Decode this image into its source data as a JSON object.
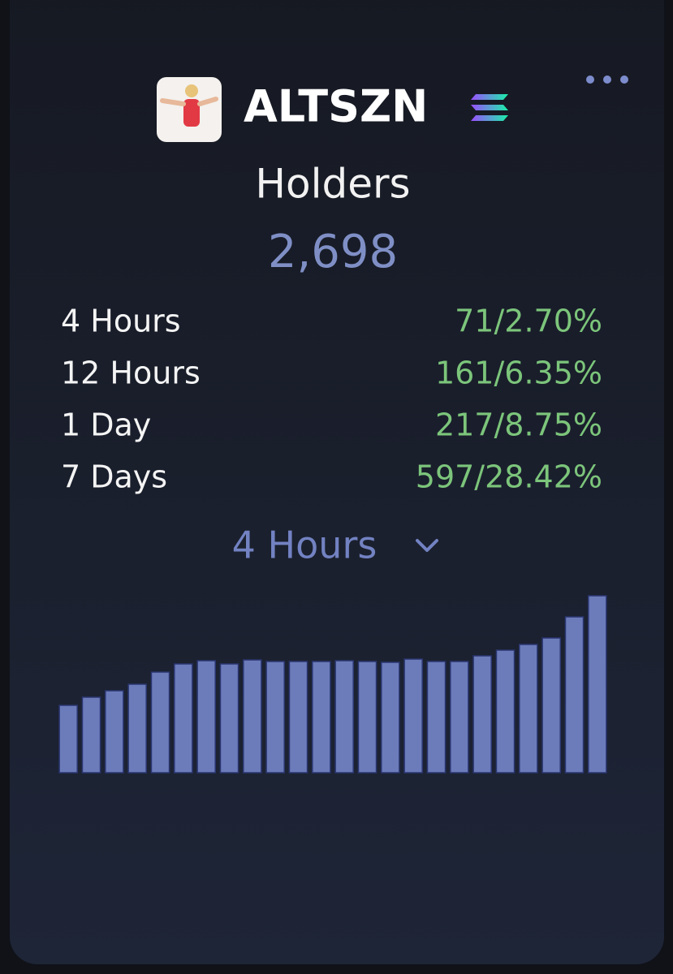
{
  "header": {
    "title": "ALTSZN",
    "subtitle": "Holders",
    "total": "2,698"
  },
  "stats": [
    {
      "label": "4 Hours",
      "value": "71/2.70%"
    },
    {
      "label": "12 Hours",
      "value": "161/6.35%"
    },
    {
      "label": "1 Day",
      "value": "217/8.75%"
    },
    {
      "label": "7 Days",
      "value": "597/28.42%"
    }
  ],
  "selector": "4 Hours",
  "chart_data": {
    "type": "bar",
    "values": [
      83,
      93,
      101,
      109,
      124,
      134,
      138,
      134,
      139,
      137,
      137,
      137,
      138,
      137,
      136,
      140,
      137,
      137,
      144,
      151,
      158,
      166,
      192,
      218
    ],
    "color": "#6c7bba",
    "ylim": [
      0,
      220
    ]
  }
}
